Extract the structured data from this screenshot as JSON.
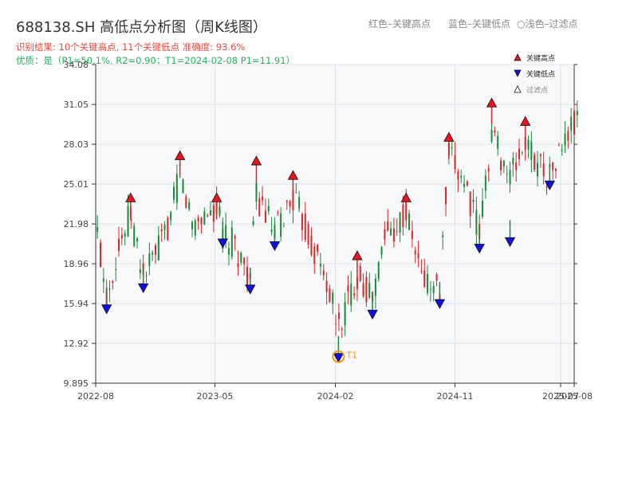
{
  "header": {
    "title": "688138.SH 高低点分析图（周K线图）",
    "legend_red": "红色–关键高点",
    "legend_blue": "蓝色–关键低点",
    "legend_light": "○浅色–过滤点",
    "result_line": "识别结果: 10个关键高点, 11个关键低点  准确度: 93.6%",
    "quality_line": "优质：是（P1=50.1%, R2=0.90；T1=2024-02-08 P1=11.91）"
  },
  "colors": {
    "up": "#d62728",
    "down": "#1a8a3a",
    "high_marker": "#e8141e",
    "low_marker": "#1010e0",
    "t1_marker": "#f39c12",
    "plot_bg": "#f7f8fa",
    "grid": "#dfe3e8"
  },
  "chart_data": {
    "type": "candlestick",
    "ylim": [
      9.895,
      34.08
    ],
    "y_ticks": [
      9.895,
      12.92,
      15.94,
      18.96,
      21.98,
      25.01,
      28.03,
      31.05,
      34.08
    ],
    "x_tick_labels": [
      "2022-08",
      "2023-05",
      "2024-02",
      "2024-11",
      "2025-07",
      "2025-08"
    ],
    "x_ticks": [
      "2022-08",
      "2023-05",
      "2024-02",
      "2024-11",
      "2025-07",
      "2025-08"
    ],
    "xlim": [
      "2022-08",
      "2025-08"
    ],
    "legend": [
      "关键高点",
      "关键低点",
      "过滤点"
    ],
    "key_highs": [
      {
        "date": "2022-10-20",
        "value": 23.9
      },
      {
        "date": "2023-02-10",
        "value": 27.1
      },
      {
        "date": "2023-05-05",
        "value": 23.9
      },
      {
        "date": "2023-08-04",
        "value": 26.7
      },
      {
        "date": "2023-10-27",
        "value": 25.6
      },
      {
        "date": "2024-03-22",
        "value": 19.5
      },
      {
        "date": "2024-07-12",
        "value": 23.9
      },
      {
        "date": "2024-10-18",
        "value": 28.5
      },
      {
        "date": "2025-01-24",
        "value": 31.1
      },
      {
        "date": "2025-04-11",
        "value": 29.7
      }
    ],
    "key_lows": [
      {
        "date": "2022-08-26",
        "value": 15.6
      },
      {
        "date": "2022-11-18",
        "value": 17.2
      },
      {
        "date": "2023-05-19",
        "value": 20.6
      },
      {
        "date": "2023-07-21",
        "value": 17.1
      },
      {
        "date": "2023-09-15",
        "value": 20.4
      },
      {
        "date": "2024-02-08",
        "value": 11.91
      },
      {
        "date": "2024-04-26",
        "value": 15.2
      },
      {
        "date": "2024-09-27",
        "value": 16.0
      },
      {
        "date": "2024-12-27",
        "value": 20.2
      },
      {
        "date": "2025-03-07",
        "value": 20.7
      },
      {
        "date": "2025-06-06",
        "value": 25.0
      }
    ],
    "annotation": {
      "label": "T1",
      "date": "2024-02-08",
      "value": 11.91
    },
    "price_path": [
      [
        "2022-08-05",
        21.2
      ],
      [
        "2022-08-26",
        16.5
      ],
      [
        "2022-09-16",
        19.5
      ],
      [
        "2022-10-20",
        22.8
      ],
      [
        "2022-11-18",
        18.0
      ],
      [
        "2022-12-30",
        20.5
      ],
      [
        "2023-01-20",
        22.5
      ],
      [
        "2023-02-10",
        25.9
      ],
      [
        "2023-03-10",
        22.0
      ],
      [
        "2023-04-14",
        22.8
      ],
      [
        "2023-05-05",
        23.2
      ],
      [
        "2023-05-19",
        21.2
      ],
      [
        "2023-06-16",
        20.3
      ],
      [
        "2023-07-21",
        17.8
      ],
      [
        "2023-08-04",
        24.2
      ],
      [
        "2023-09-15",
        21.2
      ],
      [
        "2023-10-27",
        24.0
      ],
      [
        "2023-12-08",
        20.5
      ],
      [
        "2024-01-12",
        17.5
      ],
      [
        "2024-02-08",
        14.0
      ],
      [
        "2024-03-22",
        18.2
      ],
      [
        "2024-04-26",
        16.3
      ],
      [
        "2024-05-24",
        21.0
      ],
      [
        "2024-07-12",
        22.8
      ],
      [
        "2024-08-16",
        18.0
      ],
      [
        "2024-09-27",
        16.8
      ],
      [
        "2024-10-18",
        27.0
      ],
      [
        "2024-11-22",
        25.4
      ],
      [
        "2024-12-27",
        21.2
      ],
      [
        "2025-01-24",
        29.0
      ],
      [
        "2025-03-07",
        25.5
      ],
      [
        "2025-04-11",
        28.0
      ],
      [
        "2025-06-06",
        25.6
      ],
      [
        "2025-07-25",
        29.3
      ],
      [
        "2025-08-08",
        29.5
      ]
    ]
  }
}
